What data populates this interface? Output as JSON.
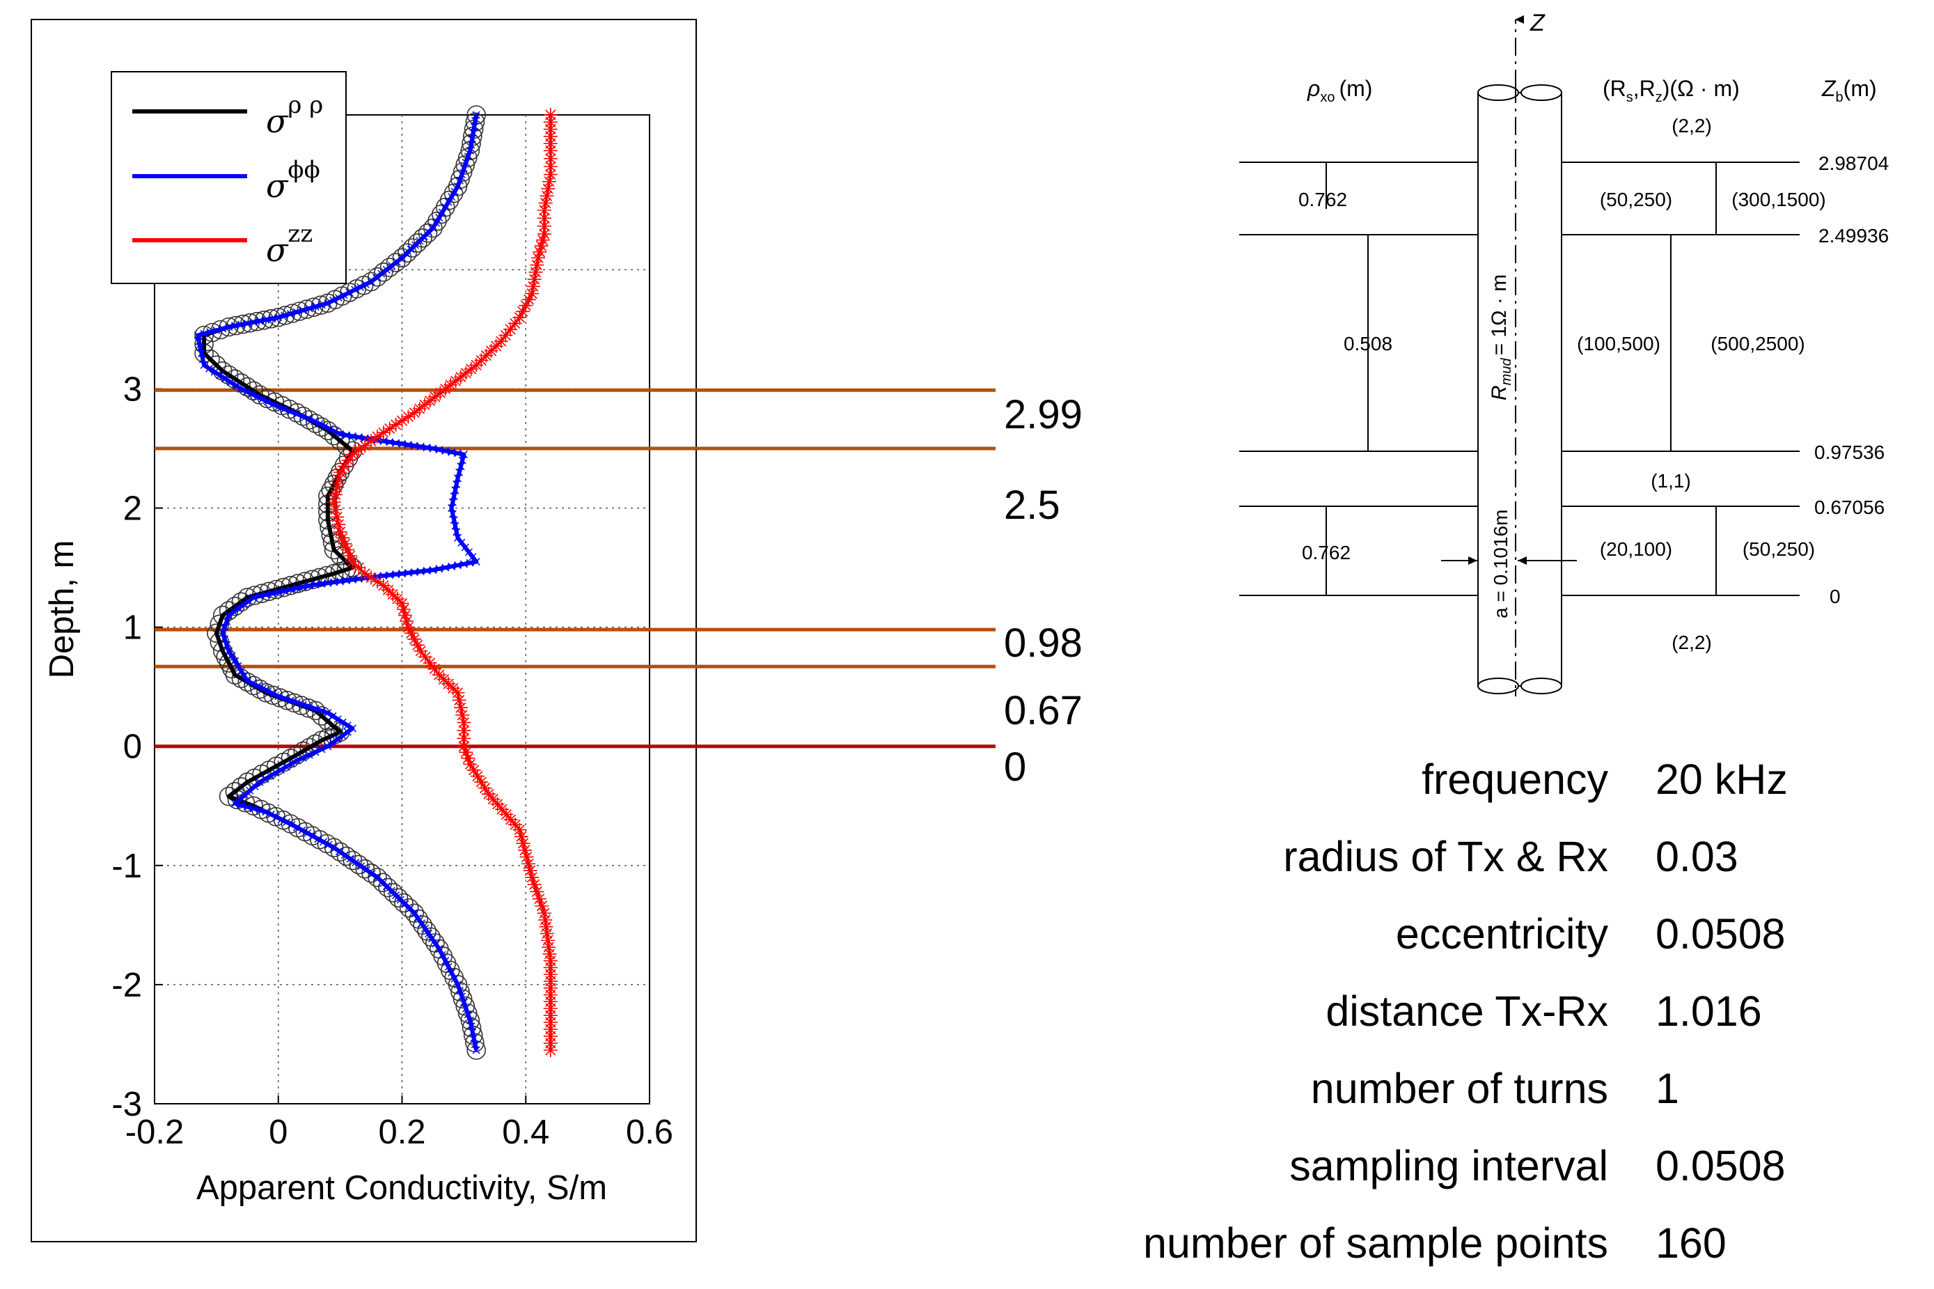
{
  "chart_data": {
    "type": "line",
    "title": "",
    "xlabel": "Apparent Conductivity, S/m",
    "ylabel": "Depth, m",
    "xlim": [
      -0.2,
      0.6
    ],
    "ylim": [
      -3,
      5.3
    ],
    "xticks": [
      "-0.2",
      "0",
      "0.2",
      "0.4",
      "0.6"
    ],
    "xtick_values": [
      -0.2,
      0,
      0.2,
      0.4,
      0.6
    ],
    "yticks": [
      "-3",
      "-2",
      "-1",
      "0",
      "1",
      "2",
      "3",
      "4"
    ],
    "ytick_values": [
      -3,
      -2,
      -1,
      0,
      1,
      2,
      3,
      4
    ],
    "grid": true,
    "legend_position": "top-left",
    "series": [
      {
        "name": "σρρ",
        "color": "#000000",
        "marker": "circle",
        "points": [
          [
            0.32,
            -2.55
          ],
          [
            0.31,
            -2.3
          ],
          [
            0.29,
            -2.0
          ],
          [
            0.26,
            -1.7
          ],
          [
            0.22,
            -1.4
          ],
          [
            0.16,
            -1.1
          ],
          [
            0.09,
            -0.85
          ],
          [
            0.02,
            -0.65
          ],
          [
            -0.04,
            -0.5
          ],
          [
            -0.08,
            -0.42
          ],
          [
            -0.05,
            -0.3
          ],
          [
            0.02,
            -0.1
          ],
          [
            0.07,
            0.05
          ],
          [
            0.1,
            0.12
          ],
          [
            0.06,
            0.3
          ],
          [
            -0.02,
            0.45
          ],
          [
            -0.07,
            0.6
          ],
          [
            -0.09,
            0.8
          ],
          [
            -0.1,
            0.95
          ],
          [
            -0.09,
            1.1
          ],
          [
            -0.05,
            1.25
          ],
          [
            0.02,
            1.35
          ],
          [
            0.09,
            1.45
          ],
          [
            0.12,
            1.5
          ],
          [
            0.09,
            1.65
          ],
          [
            0.08,
            1.9
          ],
          [
            0.08,
            2.1
          ],
          [
            0.1,
            2.3
          ],
          [
            0.12,
            2.48
          ],
          [
            0.08,
            2.65
          ],
          [
            0.03,
            2.8
          ],
          [
            -0.03,
            2.95
          ],
          [
            -0.09,
            3.15
          ],
          [
            -0.12,
            3.3
          ],
          [
            -0.12,
            3.45
          ],
          [
            -0.08,
            3.52
          ],
          [
            0.0,
            3.6
          ],
          [
            0.08,
            3.72
          ],
          [
            0.15,
            3.9
          ],
          [
            0.2,
            4.1
          ],
          [
            0.25,
            4.35
          ],
          [
            0.29,
            4.7
          ],
          [
            0.31,
            5.0
          ],
          [
            0.32,
            5.3
          ]
        ]
      },
      {
        "name": "σϕϕ",
        "color": "#0000ff",
        "marker": "x",
        "points": [
          [
            0.32,
            -2.55
          ],
          [
            0.31,
            -2.3
          ],
          [
            0.29,
            -2.0
          ],
          [
            0.26,
            -1.7
          ],
          [
            0.22,
            -1.4
          ],
          [
            0.16,
            -1.1
          ],
          [
            0.09,
            -0.85
          ],
          [
            0.03,
            -0.68
          ],
          [
            -0.02,
            -0.55
          ],
          [
            -0.07,
            -0.48
          ],
          [
            -0.03,
            -0.3
          ],
          [
            0.03,
            -0.12
          ],
          [
            0.08,
            0.0
          ],
          [
            0.12,
            0.15
          ],
          [
            0.08,
            0.28
          ],
          [
            0.0,
            0.42
          ],
          [
            -0.05,
            0.55
          ],
          [
            -0.08,
            0.8
          ],
          [
            -0.09,
            0.95
          ],
          [
            -0.08,
            1.1
          ],
          [
            -0.04,
            1.25
          ],
          [
            0.05,
            1.35
          ],
          [
            0.15,
            1.42
          ],
          [
            0.25,
            1.48
          ],
          [
            0.32,
            1.55
          ],
          [
            0.29,
            1.75
          ],
          [
            0.28,
            2.0
          ],
          [
            0.29,
            2.25
          ],
          [
            0.3,
            2.45
          ],
          [
            0.25,
            2.5
          ],
          [
            0.16,
            2.57
          ],
          [
            0.1,
            2.62
          ],
          [
            0.05,
            2.75
          ],
          [
            0.0,
            2.85
          ],
          [
            -0.06,
            3.0
          ],
          [
            -0.12,
            3.2
          ],
          [
            -0.13,
            3.45
          ],
          [
            -0.08,
            3.52
          ],
          [
            0.0,
            3.6
          ],
          [
            0.08,
            3.72
          ],
          [
            0.15,
            3.9
          ],
          [
            0.2,
            4.1
          ],
          [
            0.25,
            4.35
          ],
          [
            0.29,
            4.7
          ],
          [
            0.31,
            5.0
          ],
          [
            0.32,
            5.3
          ]
        ]
      },
      {
        "name": "σzz",
        "color": "#ff0000",
        "marker": "star",
        "points": [
          [
            0.44,
            -2.55
          ],
          [
            0.44,
            -2.2
          ],
          [
            0.44,
            -1.8
          ],
          [
            0.43,
            -1.4
          ],
          [
            0.41,
            -1.1
          ],
          [
            0.39,
            -0.7
          ],
          [
            0.34,
            -0.4
          ],
          [
            0.31,
            -0.15
          ],
          [
            0.3,
            0.0
          ],
          [
            0.3,
            0.2
          ],
          [
            0.29,
            0.45
          ],
          [
            0.26,
            0.6
          ],
          [
            0.23,
            0.8
          ],
          [
            0.21,
            1.0
          ],
          [
            0.2,
            1.2
          ],
          [
            0.17,
            1.35
          ],
          [
            0.14,
            1.45
          ],
          [
            0.12,
            1.55
          ],
          [
            0.1,
            1.8
          ],
          [
            0.09,
            2.05
          ],
          [
            0.1,
            2.3
          ],
          [
            0.12,
            2.45
          ],
          [
            0.16,
            2.6
          ],
          [
            0.22,
            2.8
          ],
          [
            0.27,
            3.0
          ],
          [
            0.32,
            3.2
          ],
          [
            0.36,
            3.4
          ],
          [
            0.39,
            3.6
          ],
          [
            0.41,
            3.8
          ],
          [
            0.42,
            4.1
          ],
          [
            0.43,
            4.3
          ],
          [
            0.43,
            4.5
          ],
          [
            0.44,
            4.8
          ],
          [
            0.44,
            5.0
          ],
          [
            0.44,
            5.3
          ]
        ]
      }
    ],
    "boundaries": [
      {
        "depth": 2.99,
        "label": "2.99",
        "color": "#b5500b"
      },
      {
        "depth": 2.5,
        "label": "2.5",
        "color": "#b5500b"
      },
      {
        "depth": 0.98,
        "label": "0.98",
        "color": "#b5500b"
      },
      {
        "depth": 0.67,
        "label": "0.67",
        "color": "#b5500b"
      },
      {
        "depth": 0,
        "label": "0",
        "color": "#c00000"
      }
    ]
  },
  "legend": {
    "items": [
      {
        "base": "σ",
        "sup": "ρ ρ",
        "color": "#000000"
      },
      {
        "base": "σ",
        "sup": "ϕϕ",
        "color": "#0000ff"
      },
      {
        "base": "σ",
        "sup": "zz",
        "color": "#ff0000"
      }
    ]
  },
  "diagram": {
    "z_axis_label": "Z",
    "rho_header": "ρ",
    "rho_header_sub": "xo",
    "rho_header_unit": "(m)",
    "rs_header": "(R",
    "rs_header_s": "s",
    "rs_header_mid": ",R",
    "rs_header_z": "z",
    "rs_header_tail": ")(Ω · m)",
    "zb_header": "Z",
    "zb_header_sub": "b",
    "zb_header_unit": "(m)",
    "rmud_label": "R",
    "rmud_sub": "mud",
    "rmud_value": "= 1Ω · m",
    "radius_label": "a = 0.1016m",
    "layers": [
      {
        "label": "(2,2)"
      },
      {
        "thickness": "0.762",
        "inner": "(50,250)",
        "outer": "(300,1500)"
      },
      {
        "thickness": "0.508",
        "inner": "(100,500)",
        "outer": "(500,2500)"
      },
      {
        "label": "(1,1)"
      },
      {
        "thickness": "0.762",
        "inner": "(20,100)",
        "outer": "(50,250)"
      },
      {
        "label": "(2,2)"
      }
    ],
    "depths": [
      "2.98704",
      "2.49936",
      "0.97536",
      "0.67056",
      "0"
    ]
  },
  "parameters": [
    {
      "name": "frequency",
      "value": "20 kHz"
    },
    {
      "name": "radius of Tx & Rx",
      "value": "0.03"
    },
    {
      "name": "eccentricity",
      "value": "0.0508"
    },
    {
      "name": "distance Tx-Rx",
      "value": "1.016"
    },
    {
      "name": "number of turns",
      "value": "1"
    },
    {
      "name": "sampling interval",
      "value": "0.0508"
    },
    {
      "name": "number of sample points",
      "value": "160"
    }
  ]
}
